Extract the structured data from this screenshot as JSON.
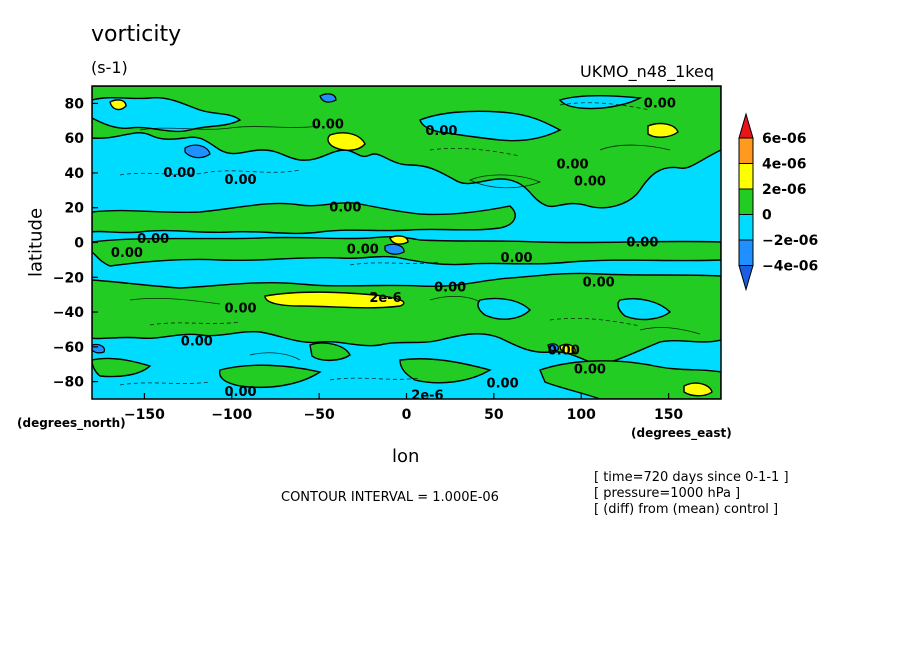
{
  "chart_data": {
    "type": "heatmap",
    "title": "vorticity",
    "units": "(s-1)",
    "model": "UKMO_n48_1keq",
    "xlabel": "lon",
    "ylabel": "latitude",
    "x_unit_label": "(degrees_east)",
    "y_unit_label": "(degrees_north)",
    "xlim": [
      -180,
      180
    ],
    "ylim": [
      -90,
      90
    ],
    "x_ticks": [
      -150,
      -100,
      -50,
      0,
      50,
      100,
      150
    ],
    "y_ticks": [
      80,
      60,
      40,
      20,
      0,
      -20,
      -40,
      -60,
      -80
    ],
    "colorbar": {
      "ticks": [
        "6e-06",
        "4e-06",
        "2e-06",
        "0",
        "-2e-06",
        "-4e-06"
      ],
      "colors": [
        "#e8141c",
        "#ff9a1e",
        "#ffff00",
        "#22cc22",
        "#00dcff",
        "#1e90ff",
        "#1a5fe0"
      ]
    },
    "contour_labels": [
      {
        "text": "0.00",
        "lon": 145,
        "lat": 80
      },
      {
        "text": "0.00",
        "lon": -45,
        "lat": 68
      },
      {
        "text": "0.00",
        "lon": 20,
        "lat": 64
      },
      {
        "text": "0.00",
        "lon": -130,
        "lat": 40
      },
      {
        "text": "0.00",
        "lon": -95,
        "lat": 36
      },
      {
        "text": "0.00",
        "lon": 95,
        "lat": 45
      },
      {
        "text": "0.00",
        "lon": 105,
        "lat": 35
      },
      {
        "text": "0.00",
        "lon": -35,
        "lat": 20
      },
      {
        "text": "0.00",
        "lon": -145,
        "lat": 2
      },
      {
        "text": "0.00",
        "lon": -160,
        "lat": -6
      },
      {
        "text": "0.00",
        "lon": -25,
        "lat": -4
      },
      {
        "text": "0.00",
        "lon": 63,
        "lat": -9
      },
      {
        "text": "0.00",
        "lon": 135,
        "lat": 0
      },
      {
        "text": "0.00",
        "lon": 25,
        "lat": -26
      },
      {
        "text": "2e-6",
        "lon": -12,
        "lat": -32
      },
      {
        "text": "0.00",
        "lon": -95,
        "lat": -38
      },
      {
        "text": "0.00",
        "lon": 110,
        "lat": -23
      },
      {
        "text": "0.00",
        "lon": -120,
        "lat": -57
      },
      {
        "text": "0.00",
        "lon": 90,
        "lat": -62
      },
      {
        "text": "0.00",
        "lon": 105,
        "lat": -73
      },
      {
        "text": "0.00",
        "lon": 55,
        "lat": -81
      },
      {
        "text": "0.00",
        "lon": -95,
        "lat": -86
      },
      {
        "text": "2e-6",
        "lon": 12,
        "lat": -88
      }
    ]
  },
  "footer": {
    "contour_interval": "CONTOUR INTERVAL = 1.000E-06",
    "time": "[ time=720 days since 0-1-1 ]",
    "pressure": "[ pressure=1000 hPa ]",
    "diff": "[ (diff) from (mean) control ]"
  }
}
